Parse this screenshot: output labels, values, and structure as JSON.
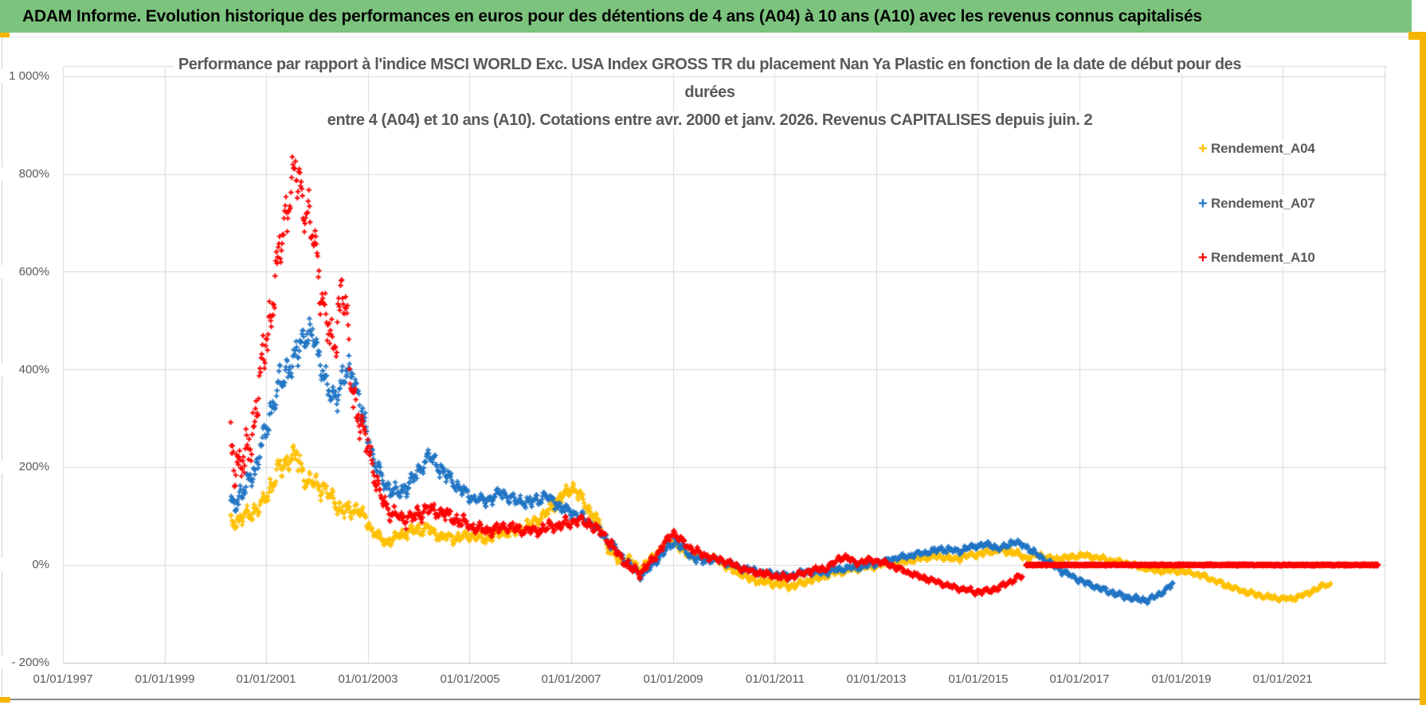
{
  "banner": {
    "title": "ADAM Informe. Evolution historique des performances en euros pour des détentions de 4 ans (A04) à 10 ans (A10) avec les revenus connus capitalisés"
  },
  "chart_data": {
    "type": "scatter",
    "marker": "plus",
    "grid": true,
    "legend_position": "right",
    "title_lines": [
      "Performance par rapport à l'indice MSCI WORLD Exc. USA Index GROSS TR  du placement Nan Ya Plastic  en fonction de la date de début pour des",
      "durées",
      "entre 4 (A04) et 10 ans (A10). Cotations entre avr. 2000 et janv. 2026. Revenus CAPITALISES depuis juin. 2"
    ],
    "x_axis": {
      "ticks": [
        "01/01/1997",
        "01/01/1999",
        "01/01/2001",
        "01/01/2003",
        "01/01/2005",
        "01/01/2007",
        "01/01/2009",
        "01/01/2011",
        "01/01/2013",
        "01/01/2015",
        "01/01/2017",
        "01/01/2019",
        "01/01/2021"
      ],
      "tick_years": [
        1997,
        1999,
        2001,
        2003,
        2005,
        2007,
        2009,
        2011,
        2013,
        2015,
        2017,
        2019,
        2021
      ],
      "range_years": [
        1997,
        2023.05
      ],
      "gridline_step_years": 2
    },
    "y_axis": {
      "ticks": [
        "1 000%",
        "800%",
        "600%",
        "400%",
        "200%",
        "0%",
        "- 200%"
      ],
      "tick_values": [
        1000,
        800,
        600,
        400,
        200,
        0,
        -200
      ],
      "range_pct": [
        -200,
        1020
      ]
    },
    "series": [
      {
        "name": "Rendement_A04",
        "color": "#FFC000",
        "note": "values read from chart as [start_year, performance_pct, local_spread_pct]",
        "data": [
          [
            2000.3,
            85,
            18
          ],
          [
            2000.6,
            100,
            20
          ],
          [
            2000.9,
            120,
            22
          ],
          [
            2001.15,
            175,
            30
          ],
          [
            2001.4,
            215,
            25
          ],
          [
            2001.6,
            220,
            28
          ],
          [
            2001.8,
            170,
            25
          ],
          [
            2002.0,
            165,
            25
          ],
          [
            2002.2,
            150,
            22
          ],
          [
            2002.5,
            110,
            20
          ],
          [
            2002.8,
            115,
            18
          ],
          [
            2003.1,
            70,
            15
          ],
          [
            2003.35,
            45,
            12
          ],
          [
            2003.6,
            60,
            14
          ],
          [
            2003.9,
            70,
            14
          ],
          [
            2004.15,
            75,
            13
          ],
          [
            2004.4,
            60,
            12
          ],
          [
            2004.7,
            55,
            12
          ],
          [
            2005.0,
            62,
            12
          ],
          [
            2005.3,
            52,
            11
          ],
          [
            2005.6,
            66,
            12
          ],
          [
            2005.9,
            70,
            12
          ],
          [
            2006.2,
            82,
            13
          ],
          [
            2006.5,
            105,
            15
          ],
          [
            2006.8,
            140,
            15
          ],
          [
            2007.05,
            160,
            15
          ],
          [
            2007.3,
            120,
            15
          ],
          [
            2007.55,
            85,
            14
          ],
          [
            2007.75,
            30,
            12
          ],
          [
            2007.95,
            8,
            10
          ],
          [
            2008.15,
            12,
            10
          ],
          [
            2008.35,
            -10,
            10
          ],
          [
            2008.6,
            15,
            10
          ],
          [
            2008.85,
            40,
            10
          ],
          [
            2009.0,
            48,
            10
          ],
          [
            2009.2,
            28,
            9
          ],
          [
            2009.45,
            14,
            9
          ],
          [
            2009.7,
            16,
            8
          ],
          [
            2009.95,
            6,
            8
          ],
          [
            2010.2,
            -12,
            8
          ],
          [
            2010.5,
            -28,
            8
          ],
          [
            2010.8,
            -35,
            8
          ],
          [
            2011.1,
            -40,
            8
          ],
          [
            2011.35,
            -44,
            8
          ],
          [
            2011.6,
            -35,
            8
          ],
          [
            2011.85,
            -28,
            8
          ],
          [
            2012.1,
            -18,
            8
          ],
          [
            2012.4,
            -12,
            8
          ],
          [
            2012.7,
            -6,
            7
          ],
          [
            2013.0,
            -2,
            7
          ],
          [
            2013.3,
            4,
            7
          ],
          [
            2013.6,
            8,
            7
          ],
          [
            2013.9,
            14,
            7
          ],
          [
            2014.2,
            18,
            7
          ],
          [
            2014.5,
            12,
            7
          ],
          [
            2014.8,
            18,
            7
          ],
          [
            2015.1,
            24,
            7
          ],
          [
            2015.4,
            30,
            7
          ],
          [
            2015.7,
            26,
            7
          ],
          [
            2015.95,
            15,
            7
          ],
          [
            2016.2,
            20,
            7
          ],
          [
            2016.5,
            12,
            6
          ],
          [
            2016.8,
            16,
            6
          ],
          [
            2017.1,
            20,
            6
          ],
          [
            2017.4,
            14,
            6
          ],
          [
            2017.7,
            8,
            6
          ],
          [
            2018.0,
            2,
            6
          ],
          [
            2018.3,
            -8,
            6
          ],
          [
            2018.6,
            -12,
            6
          ],
          [
            2018.9,
            -12,
            6
          ],
          [
            2019.2,
            -16,
            6
          ],
          [
            2019.5,
            -25,
            6
          ],
          [
            2019.8,
            -38,
            6
          ],
          [
            2020.0,
            -46,
            6
          ],
          [
            2020.3,
            -56,
            6
          ],
          [
            2020.6,
            -64,
            6
          ],
          [
            2020.9,
            -68,
            6
          ],
          [
            2021.15,
            -70,
            6
          ],
          [
            2021.4,
            -62,
            6
          ],
          [
            2021.65,
            -50,
            7
          ],
          [
            2021.85,
            -40,
            7
          ],
          [
            2021.95,
            -42,
            6
          ]
        ]
      },
      {
        "name": "Rendement_A07",
        "color": "#2175C4",
        "note": "values read from chart as [start_year, performance_pct, local_spread_pct]",
        "data": [
          [
            2000.3,
            120,
            25
          ],
          [
            2000.55,
            150,
            25
          ],
          [
            2000.8,
            200,
            30
          ],
          [
            2001.0,
            280,
            35
          ],
          [
            2001.2,
            350,
            40
          ],
          [
            2001.4,
            400,
            40
          ],
          [
            2001.6,
            430,
            40
          ],
          [
            2001.8,
            480,
            35
          ],
          [
            2001.95,
            460,
            35
          ],
          [
            2002.1,
            400,
            35
          ],
          [
            2002.3,
            330,
            30
          ],
          [
            2002.5,
            380,
            35
          ],
          [
            2002.7,
            400,
            30
          ],
          [
            2002.9,
            300,
            30
          ],
          [
            2003.1,
            220,
            25
          ],
          [
            2003.3,
            170,
            20
          ],
          [
            2003.6,
            145,
            18
          ],
          [
            2003.9,
            175,
            18
          ],
          [
            2004.2,
            225,
            20
          ],
          [
            2004.45,
            195,
            18
          ],
          [
            2004.7,
            165,
            16
          ],
          [
            2005.0,
            140,
            15
          ],
          [
            2005.3,
            130,
            14
          ],
          [
            2005.6,
            148,
            14
          ],
          [
            2005.9,
            132,
            14
          ],
          [
            2006.2,
            128,
            14
          ],
          [
            2006.5,
            142,
            14
          ],
          [
            2006.8,
            118,
            13
          ],
          [
            2007.1,
            102,
            13
          ],
          [
            2007.35,
            88,
            12
          ],
          [
            2007.6,
            65,
            12
          ],
          [
            2007.85,
            35,
            11
          ],
          [
            2008.1,
            5,
            10
          ],
          [
            2008.35,
            -22,
            10
          ],
          [
            2008.6,
            -2,
            10
          ],
          [
            2008.85,
            30,
            10
          ],
          [
            2009.05,
            50,
            10
          ],
          [
            2009.3,
            22,
            9
          ],
          [
            2009.55,
            8,
            9
          ],
          [
            2009.8,
            12,
            8
          ],
          [
            2010.1,
            2,
            8
          ],
          [
            2010.4,
            -8,
            8
          ],
          [
            2010.7,
            -14,
            8
          ],
          [
            2011.0,
            -20,
            8
          ],
          [
            2011.3,
            -24,
            8
          ],
          [
            2011.6,
            -14,
            8
          ],
          [
            2011.9,
            -16,
            8
          ],
          [
            2012.2,
            -10,
            7
          ],
          [
            2012.5,
            -6,
            7
          ],
          [
            2012.8,
            -2,
            7
          ],
          [
            2013.1,
            6,
            7
          ],
          [
            2013.4,
            14,
            7
          ],
          [
            2013.7,
            20,
            7
          ],
          [
            2014.0,
            26,
            7
          ],
          [
            2014.3,
            32,
            7
          ],
          [
            2014.6,
            28,
            7
          ],
          [
            2014.9,
            38,
            7
          ],
          [
            2015.2,
            42,
            7
          ],
          [
            2015.45,
            32,
            7
          ],
          [
            2015.7,
            48,
            7
          ],
          [
            2015.95,
            38,
            7
          ],
          [
            2016.15,
            22,
            7
          ],
          [
            2016.4,
            5,
            7
          ],
          [
            2016.65,
            -12,
            7
          ],
          [
            2016.9,
            -26,
            7
          ],
          [
            2017.2,
            -40,
            7
          ],
          [
            2017.5,
            -52,
            7
          ],
          [
            2017.8,
            -62,
            7
          ],
          [
            2018.1,
            -70,
            7
          ],
          [
            2018.35,
            -72,
            7
          ],
          [
            2018.55,
            -62,
            7
          ],
          [
            2018.7,
            -50,
            7
          ],
          [
            2018.85,
            -38,
            7
          ]
        ]
      },
      {
        "name": "Rendement_A10",
        "color": "#FF0000",
        "note": "values read from chart as [start_year, performance_pct, local_spread_pct]; flat segment = start dates whose 10-year holding is not yet complete, plotted at 0%",
        "data": [
          [
            2000.3,
            240,
            70
          ],
          [
            2000.55,
            200,
            60
          ],
          [
            2000.75,
            280,
            60
          ],
          [
            2000.95,
            430,
            60
          ],
          [
            2001.15,
            560,
            60
          ],
          [
            2001.35,
            700,
            70
          ],
          [
            2001.55,
            810,
            45
          ],
          [
            2001.7,
            760,
            60
          ],
          [
            2001.85,
            700,
            60
          ],
          [
            2002.0,
            620,
            70
          ],
          [
            2002.15,
            520,
            55
          ],
          [
            2002.3,
            440,
            50
          ],
          [
            2002.5,
            580,
            100
          ],
          [
            2002.65,
            400,
            60
          ],
          [
            2002.85,
            280,
            40
          ],
          [
            2003.0,
            250,
            35
          ],
          [
            2003.2,
            150,
            30
          ],
          [
            2003.45,
            105,
            20
          ],
          [
            2003.7,
            95,
            18
          ],
          [
            2003.95,
            100,
            18
          ],
          [
            2004.2,
            115,
            18
          ],
          [
            2004.5,
            105,
            16
          ],
          [
            2004.8,
            90,
            15
          ],
          [
            2005.1,
            75,
            14
          ],
          [
            2005.4,
            70,
            14
          ],
          [
            2005.7,
            78,
            14
          ],
          [
            2006.0,
            72,
            13
          ],
          [
            2006.3,
            70,
            13
          ],
          [
            2006.6,
            78,
            13
          ],
          [
            2006.9,
            85,
            13
          ],
          [
            2007.15,
            92,
            13
          ],
          [
            2007.4,
            82,
            13
          ],
          [
            2007.65,
            60,
            12
          ],
          [
            2007.9,
            25,
            11
          ],
          [
            2008.15,
            -5,
            10
          ],
          [
            2008.35,
            -18,
            10
          ],
          [
            2008.6,
            10,
            10
          ],
          [
            2008.85,
            45,
            10
          ],
          [
            2009.0,
            68,
            10
          ],
          [
            2009.25,
            40,
            9
          ],
          [
            2009.5,
            25,
            9
          ],
          [
            2009.75,
            15,
            8
          ],
          [
            2010.0,
            8,
            8
          ],
          [
            2010.3,
            -5,
            8
          ],
          [
            2010.6,
            -15,
            8
          ],
          [
            2010.9,
            -20,
            8
          ],
          [
            2011.2,
            -26,
            8
          ],
          [
            2011.45,
            -20,
            8
          ],
          [
            2011.7,
            -12,
            8
          ],
          [
            2012.0,
            -8,
            7
          ],
          [
            2012.35,
            18,
            8
          ],
          [
            2012.6,
            4,
            7
          ],
          [
            2012.9,
            10,
            7
          ],
          [
            2013.2,
            4,
            7
          ],
          [
            2013.5,
            -10,
            7
          ],
          [
            2013.8,
            -22,
            7
          ],
          [
            2014.1,
            -32,
            7
          ],
          [
            2014.4,
            -42,
            7
          ],
          [
            2014.7,
            -50,
            7
          ],
          [
            2015.0,
            -55,
            7
          ],
          [
            2015.25,
            -52,
            7
          ],
          [
            2015.5,
            -42,
            7
          ],
          [
            2015.7,
            -30,
            8
          ],
          [
            2015.88,
            -22,
            8
          ]
        ],
        "flat_segment": {
          "from": 2015.95,
          "to": 2022.88,
          "value": 0
        }
      }
    ]
  }
}
